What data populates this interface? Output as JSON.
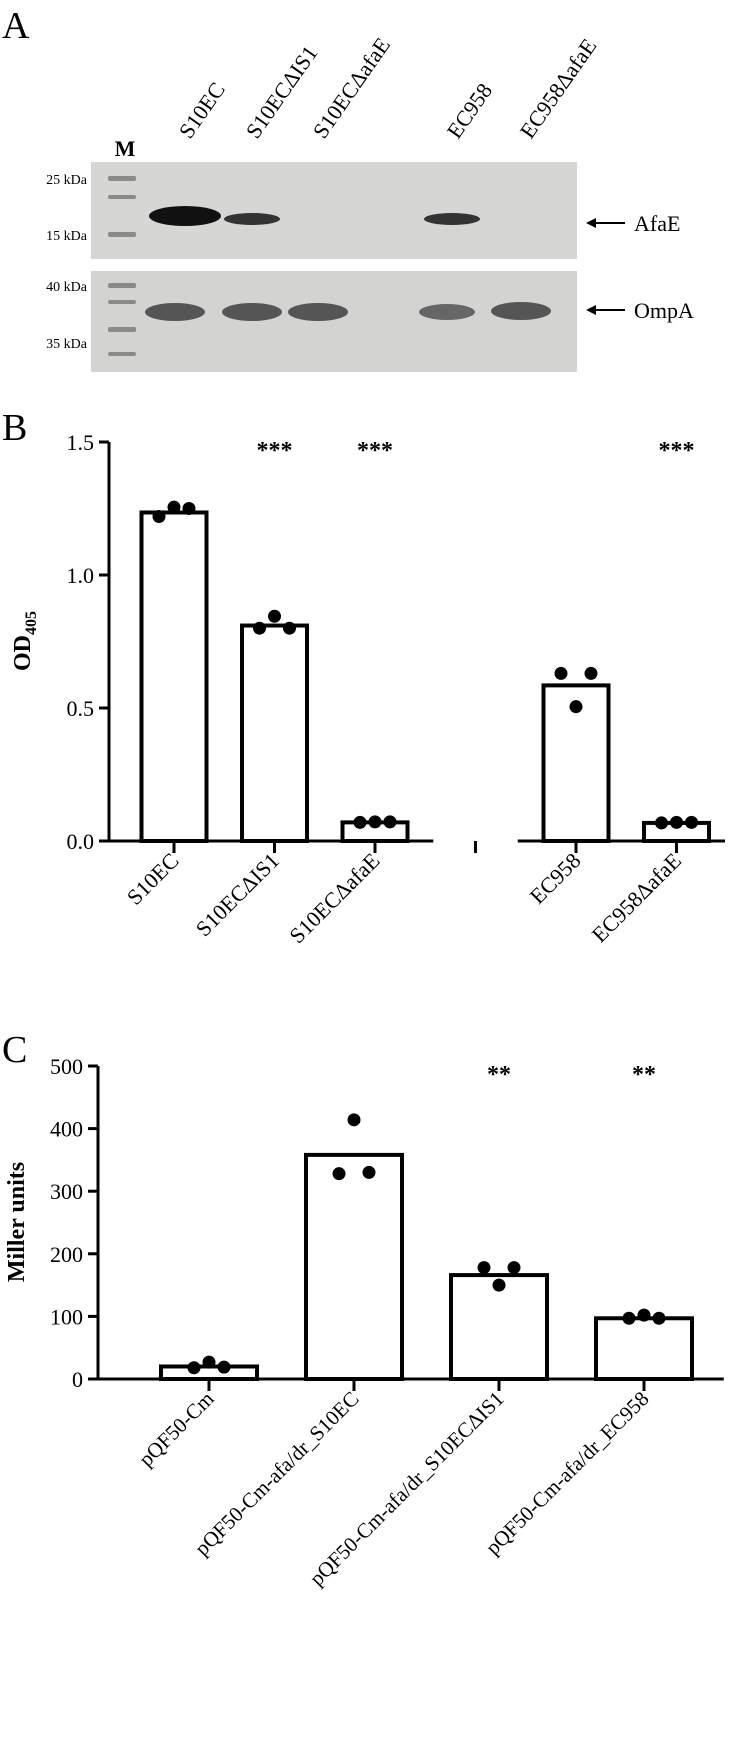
{
  "panels": [
    "A",
    "B",
    "C"
  ],
  "gel": {
    "lanes": [
      "M",
      "S10EC",
      "S10ECΔIS1",
      "S10ECΔafaE",
      "EC958",
      "EC958ΔafaE"
    ],
    "markers": [
      "25 kDa",
      "15 kDa",
      "40 kDa",
      "35 kDa"
    ],
    "proteins": [
      "AfaE",
      "OmpA"
    ]
  },
  "chart_data": [
    {
      "type": "bar",
      "ylabel": "OD",
      "ylabel_subscript": "405",
      "categories": [
        "S10EC",
        "S10ECΔIS1",
        "S10ECΔafaE",
        null,
        "EC958",
        "EC958ΔafaE"
      ],
      "values": [
        1.235,
        0.81,
        0.07,
        null,
        0.585,
        0.068
      ],
      "points": [
        [
          1.22,
          1.255,
          1.25
        ],
        [
          0.8,
          0.845,
          0.8
        ],
        [
          0.07,
          0.072,
          0.072
        ],
        null,
        [
          0.63,
          0.505,
          0.63
        ],
        [
          0.068,
          0.07,
          0.07
        ]
      ],
      "annotations": [
        null,
        "***",
        "***",
        null,
        null,
        "***"
      ],
      "ylim": [
        0,
        1.5
      ],
      "yticks": [
        {
          "value": 0,
          "label": "0.0"
        },
        0.5,
        {
          "value": 1,
          "label": "1.0"
        },
        1.5
      ],
      "bar_color": "#ffffff",
      "point_color": "#000000"
    },
    {
      "type": "bar",
      "ylabel": "Miller units",
      "categories": [
        "pQF50-Cm",
        "pQF50-Cm-afa/dr_S10EC",
        "pQF50-Cm-afa/dr_S10ECΔIS1",
        "pQF50-Cm-afa/dr_EC958"
      ],
      "values": [
        20,
        358,
        166,
        97
      ],
      "points": [
        [
          18,
          27,
          19
        ],
        [
          328,
          414,
          330
        ],
        [
          178,
          150,
          178
        ],
        [
          97,
          102,
          97
        ]
      ],
      "annotations": [
        null,
        null,
        "**",
        "**"
      ],
      "ylim": [
        0,
        500
      ],
      "yticks": [
        0,
        100,
        200,
        300,
        400,
        500
      ],
      "bar_color": "#ffffff",
      "point_color": "#000000"
    }
  ]
}
